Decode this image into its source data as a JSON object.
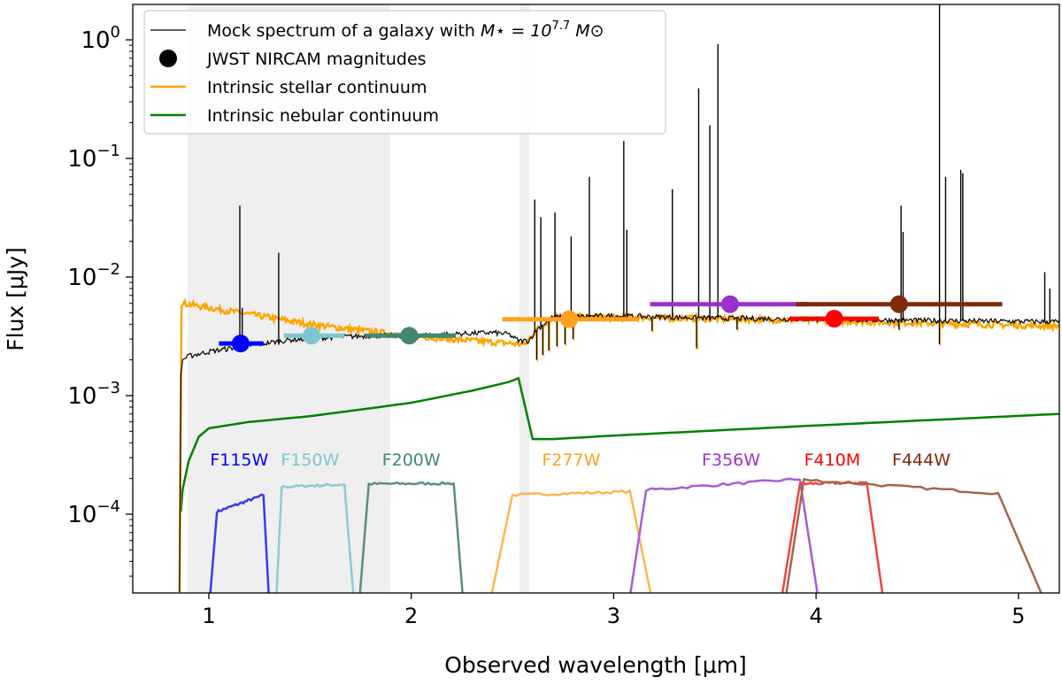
{
  "chart_data": {
    "type": "line",
    "title": "",
    "xlabel": "Observed wavelength [μm]",
    "ylabel": "Flux [μJy]",
    "xlim": [
      0.62,
      5.2
    ],
    "ylim": [
      2.1e-05,
      2.0
    ],
    "yscale": "log",
    "grid": false,
    "legend_placement": "top-left",
    "x_ticks": [
      1,
      2,
      3,
      4,
      5
    ],
    "x_tick_labels": [
      "1",
      "2",
      "3",
      "4",
      "5"
    ],
    "y_ticks": [
      1,
      0.1,
      0.01,
      0.001,
      0.0001
    ],
    "y_tick_labels": [
      {
        "base": "10",
        "exp": "0"
      },
      {
        "base": "10",
        "exp": "−1"
      },
      {
        "base": "10",
        "exp": "−2"
      },
      {
        "base": "10",
        "exp": "−3"
      },
      {
        "base": "10",
        "exp": "−4"
      }
    ],
    "shaded_regions": [
      [
        0.895,
        1.895
      ],
      [
        2.535,
        2.583
      ]
    ],
    "legend": [
      {
        "label": "Mock spectrum of a galaxy with ",
        "math": "M⋆ = 10",
        "sup": "7.7",
        "math2": " M⊙",
        "kind": "line",
        "color": "#000000"
      },
      {
        "label": "JWST NIRCAM magnitudes",
        "kind": "marker",
        "color": "#000000"
      },
      {
        "label": "Intrinsic stellar continuum",
        "kind": "line",
        "color": "#ffa500"
      },
      {
        "label": "Intrinsic nebular continuum",
        "kind": "line",
        "color": "#008000"
      }
    ],
    "series": [
      {
        "name": "Mock spectrum",
        "color": "#000000",
        "x": [
          0.855,
          0.862,
          0.87,
          0.9,
          1.0,
          1.2,
          1.4,
          1.6,
          1.8,
          2.0,
          2.2,
          2.4,
          2.48,
          2.53,
          2.58,
          2.62,
          2.7,
          3.0,
          3.5,
          4.0,
          4.5,
          5.2
        ],
        "y": [
          2.2e-05,
          0.0015,
          0.002,
          0.00215,
          0.00235,
          0.00265,
          0.00295,
          0.0031,
          0.0032,
          0.0032,
          0.0033,
          0.0034,
          0.0033,
          0.0029,
          0.0029,
          0.0036,
          0.0046,
          0.0047,
          0.0045,
          0.0044,
          0.0043,
          0.0042
        ],
        "emission_lines": [
          [
            1.153,
            0.04
          ],
          [
            1.165,
            0.0055
          ],
          [
            1.345,
            0.016
          ],
          [
            2.61,
            0.045
          ],
          [
            2.64,
            0.032
          ],
          [
            2.71,
            0.035
          ],
          [
            2.79,
            0.022
          ],
          [
            2.88,
            0.07
          ],
          [
            3.05,
            0.14
          ],
          [
            3.065,
            0.025
          ],
          [
            3.29,
            0.055
          ],
          [
            3.42,
            0.39
          ],
          [
            3.475,
            0.19
          ],
          [
            3.515,
            0.92
          ],
          [
            4.42,
            0.04
          ],
          [
            4.43,
            0.024
          ],
          [
            4.61,
            2.0
          ],
          [
            4.64,
            0.07
          ],
          [
            4.715,
            0.08
          ],
          [
            4.725,
            0.075
          ],
          [
            5.13,
            0.011
          ],
          [
            5.155,
            0.008
          ]
        ],
        "absorption_lines": [
          [
            2.62,
            0.002
          ],
          [
            2.65,
            0.0022
          ],
          [
            2.68,
            0.0024
          ],
          [
            2.72,
            0.0026
          ],
          [
            2.76,
            0.0027
          ],
          [
            2.8,
            0.003
          ],
          [
            3.19,
            0.0035
          ],
          [
            3.41,
            0.0025
          ],
          [
            3.61,
            0.0036
          ],
          [
            4.41,
            0.0036
          ],
          [
            4.61,
            0.0027
          ]
        ]
      },
      {
        "name": "Intrinsic stellar continuum",
        "color": "#ffa500",
        "x": [
          0.855,
          0.865,
          0.875,
          1.0,
          1.25,
          1.5,
          1.75,
          2.0,
          2.25,
          2.5,
          2.56,
          2.62,
          2.7,
          3.0,
          3.5,
          4.0,
          4.5,
          5.2
        ],
        "y": [
          2.2e-05,
          0.0056,
          0.006,
          0.0055,
          0.0047,
          0.004,
          0.00355,
          0.0032,
          0.00295,
          0.00275,
          0.0027,
          0.0036,
          0.0046,
          0.0046,
          0.00445,
          0.0043,
          0.0041,
          0.00385
        ]
      },
      {
        "name": "Intrinsic nebular continuum",
        "color": "#008000",
        "x": [
          0.862,
          0.87,
          0.9,
          0.95,
          1.0,
          1.2,
          1.5,
          2.0,
          2.3,
          2.48,
          2.53,
          2.6,
          2.7,
          3.0,
          4.0,
          5.2
        ],
        "y": [
          0.000105,
          0.00016,
          0.00028,
          0.00045,
          0.00053,
          0.0006,
          0.00067,
          0.00087,
          0.0011,
          0.0013,
          0.0014,
          0.00043,
          0.00043,
          0.00046,
          0.00056,
          0.0007
        ]
      }
    ],
    "photometry": [
      {
        "filter": "F115W",
        "wavelength": 1.157,
        "flux": 0.00275,
        "xerr": [
          1.05,
          1.27
        ],
        "color": "#0000ff",
        "curve_color": "#3a3aee",
        "curve": [
          1.0,
          1.04,
          1.27,
          1.3,
          0.000105,
          0.000145
        ],
        "label_x": 1.15
      },
      {
        "filter": "F150W",
        "wavelength": 1.507,
        "flux": 0.0032,
        "xerr": [
          1.37,
          1.67
        ],
        "color": "#7ec6cf",
        "curve_color": "#8ccbd3",
        "curve": [
          1.33,
          1.36,
          1.67,
          1.72,
          0.00017,
          0.000178
        ],
        "label_x": 1.5
      },
      {
        "filter": "F200W",
        "wavelength": 1.99,
        "flux": 0.0032,
        "xerr": [
          1.77,
          2.22
        ],
        "color": "#44876f",
        "curve_color": "#5a8f7c",
        "curve": [
          1.74,
          1.79,
          2.21,
          2.26,
          0.00018,
          0.000182
        ],
        "label_x": 2.0
      },
      {
        "filter": "F277W",
        "wavelength": 2.78,
        "flux": 0.0044,
        "xerr": [
          2.45,
          3.12
        ],
        "color": "#ffa01e",
        "curve_color": "#ffb54d",
        "curve": [
          2.38,
          2.5,
          3.08,
          3.2,
          0.000145,
          0.000155
        ],
        "label_x": 2.79
      },
      {
        "filter": "F356W",
        "wavelength": 3.575,
        "flux": 0.0059,
        "xerr": [
          3.18,
          3.96
        ],
        "color": "#9932cc",
        "curve_color": "#a55dd6",
        "curve": [
          3.07,
          3.16,
          3.92,
          4.02,
          0.00016,
          0.000198
        ],
        "label_x": 3.58
      },
      {
        "filter": "F410M",
        "wavelength": 4.09,
        "flux": 0.00445,
        "xerr": [
          3.87,
          4.31
        ],
        "color": "#ff0000",
        "curve_color": "#ee4444",
        "curve": [
          3.82,
          3.92,
          4.25,
          4.34,
          0.00018,
          0.000185
        ],
        "label_x": 4.08
      },
      {
        "filter": "F444W",
        "wavelength": 4.41,
        "flux": 0.0059,
        "xerr": [
          3.9,
          4.92
        ],
        "color": "#7f2a0a",
        "curve_color": "#a5654a",
        "curve": [
          3.84,
          3.94,
          4.9,
          5.15,
          0.000195,
          0.00015
        ],
        "label_x": 4.52
      }
    ],
    "filter_label_flux": 0.00029
  }
}
